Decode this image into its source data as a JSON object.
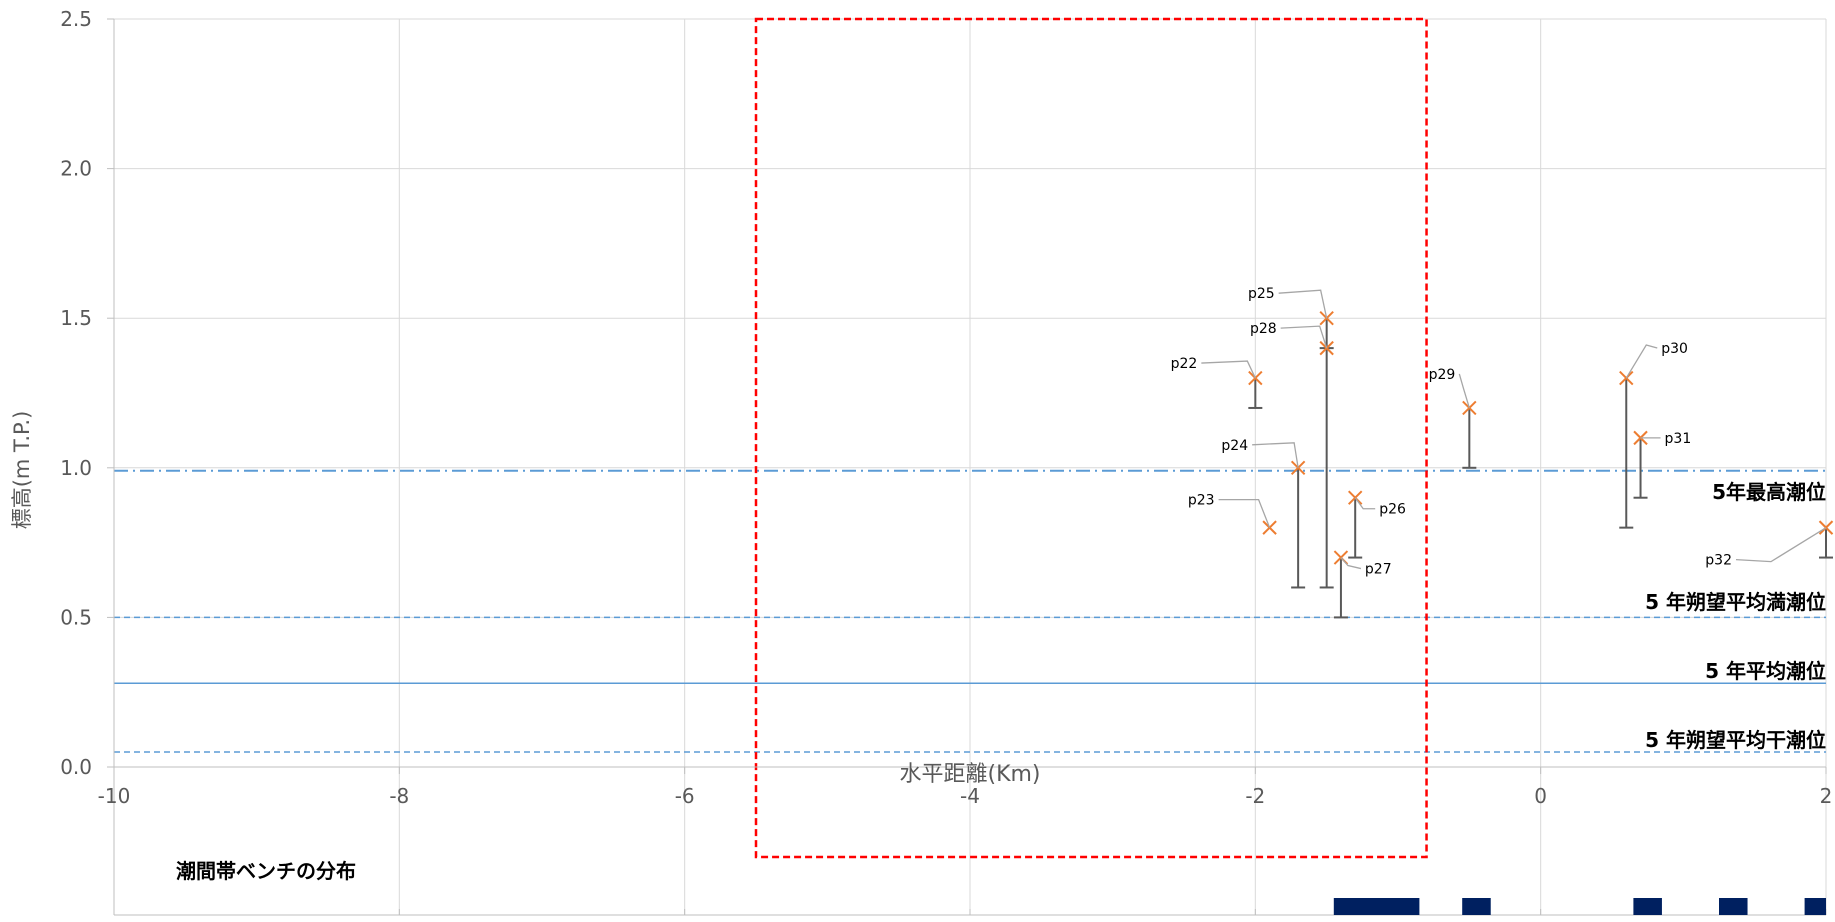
{
  "chart_data": {
    "type": "scatter",
    "title": "",
    "xlabel": "水平距離(Km)",
    "ylabel": "標高(m T.P.)",
    "xlim": [
      -10,
      2
    ],
    "ylim": [
      0,
      2.5
    ],
    "x_ticks": [
      -10,
      -8,
      -6,
      -4,
      -2,
      0,
      2
    ],
    "x_tick_labels": [
      "-10",
      "-8",
      "-6",
      "-4",
      "-2",
      "0",
      "2"
    ],
    "y_ticks": [
      0,
      0.5,
      1,
      1.5,
      2,
      2.5
    ],
    "y_tick_labels": [
      "0.0",
      "0.5",
      "1.0",
      "1.5",
      "2.0",
      "2.5"
    ],
    "grid": true,
    "points": [
      {
        "label": "p22",
        "x": -2.0,
        "y": 1.3,
        "low": 1.2
      },
      {
        "label": "p23",
        "x": -1.9,
        "y": 0.8,
        "low": 0.8
      },
      {
        "label": "p24",
        "x": -1.7,
        "y": 1.0,
        "low": 0.6
      },
      {
        "label": "p25",
        "x": -1.5,
        "y": 1.5,
        "low": 1.4
      },
      {
        "label": "p28",
        "x": -1.5,
        "y": 1.4,
        "low": 0.6
      },
      {
        "label": "p27",
        "x": -1.4,
        "y": 0.7,
        "low": 0.5
      },
      {
        "label": "p26",
        "x": -1.3,
        "y": 0.9,
        "low": 0.7
      },
      {
        "label": "p29",
        "x": -0.5,
        "y": 1.2,
        "low": 1.0
      },
      {
        "label": "p30",
        "x": 0.6,
        "y": 1.3,
        "low": 0.8
      },
      {
        "label": "p31",
        "x": 0.7,
        "y": 1.1,
        "low": 0.9
      },
      {
        "label": "p32",
        "x": 2.0,
        "y": 0.8,
        "low": 0.7
      }
    ],
    "reference_lines": [
      {
        "label": "5年最高潮位",
        "y": 0.99,
        "style": "dash-dot"
      },
      {
        "label": "5 年朔望平均満潮位",
        "y": 0.5,
        "style": "dashed"
      },
      {
        "label": "5 年平均潮位",
        "y": 0.28,
        "style": "solid"
      },
      {
        "label": "5 年朔望平均干潮位",
        "y": 0.05,
        "style": "dashed"
      }
    ],
    "highlight_box": {
      "x_range": [
        -5.5,
        -0.8
      ],
      "style": "red-dashed"
    },
    "bench_distribution": {
      "title": "潮間帯ベンチの分布",
      "segments": [
        {
          "x_start": -1.45,
          "x_end": -0.85
        },
        {
          "x_start": -0.55,
          "x_end": -0.35
        },
        {
          "x_start": 0.65,
          "x_end": 0.85
        },
        {
          "x_start": 1.25,
          "x_end": 1.45
        },
        {
          "x_start": 1.85,
          "x_end": 2.0
        }
      ]
    },
    "colors": {
      "marker": "#ed7d31",
      "error_bar": "#595959",
      "reference_line": "#5b9bd5",
      "grid": "#d9d9d9",
      "highlight_box": "#ff0000",
      "bench": "#002060"
    }
  }
}
